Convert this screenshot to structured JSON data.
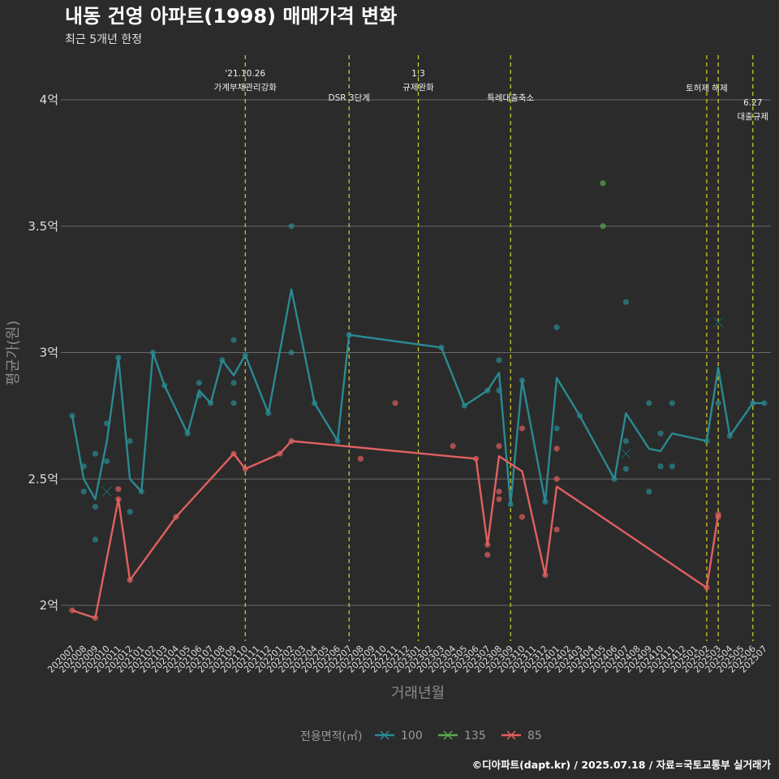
{
  "chart_data": {
    "type": "line",
    "title": "내동 건영 아파트(1998) 매매가격 변화",
    "subtitle": "최근 5개년 한정",
    "xlabel": "거래년월",
    "ylabel": "평균가(원)",
    "caption": "©디아파트(dapt.kr) / 2025.07.18 / 자료=국토교통부 실거래가",
    "ylim": [
      1.85,
      4.2
    ],
    "yticks": [
      {
        "v": 2,
        "label": "2억"
      },
      {
        "v": 2.5,
        "label": "2.5억"
      },
      {
        "v": 3,
        "label": "3억"
      },
      {
        "v": 3.5,
        "label": "3.5억"
      },
      {
        "v": 4,
        "label": "4억"
      }
    ],
    "x_categories": [
      "202007",
      "202008",
      "202009",
      "202010",
      "202011",
      "202012",
      "202101",
      "202102",
      "202103",
      "202104",
      "202105",
      "202106",
      "202107",
      "202108",
      "202109",
      "202110",
      "202111",
      "202112",
      "202201",
      "202202",
      "202203",
      "202204",
      "202205",
      "202206",
      "202207",
      "202208",
      "202209",
      "202210",
      "202211",
      "202212",
      "202301",
      "202302",
      "202303",
      "202304",
      "202305",
      "202306",
      "202307",
      "202308",
      "202309",
      "202310",
      "202311",
      "202312",
      "202401",
      "202402",
      "202403",
      "202404",
      "202405",
      "202406",
      "202407",
      "202408",
      "202409",
      "202410",
      "202411",
      "202412",
      "202501",
      "202502",
      "202503",
      "202504",
      "202505",
      "202506",
      "202507"
    ],
    "grid": true,
    "legend": {
      "title": "전용면적(㎡)",
      "position": "bottom"
    },
    "events": [
      {
        "x": 15,
        "lines": [
          "'21.10.26",
          "가계부채관리강화"
        ],
        "level": 0
      },
      {
        "x": 24,
        "lines": [
          "DSR 3단계"
        ],
        "level": 1
      },
      {
        "x": 30,
        "lines": [
          "1.3",
          "규제완화"
        ],
        "level": 0
      },
      {
        "x": 38,
        "lines": [
          "특례대출축소"
        ],
        "level": 1
      },
      {
        "x": 55,
        "lines": [
          "토허제 해제"
        ],
        "level": 0.6
      },
      {
        "x": 56,
        "lines": [],
        "level": 0
      },
      {
        "x": 59,
        "lines": [
          "6.27",
          "대출규제"
        ],
        "level": 1.2
      }
    ],
    "series": [
      {
        "name": "100",
        "color": "#2a8a92",
        "line": [
          [
            0,
            2.75
          ],
          [
            1,
            2.5
          ],
          [
            2,
            2.42
          ],
          [
            3,
            2.65
          ],
          [
            4,
            2.98
          ],
          [
            5,
            2.5
          ],
          [
            6,
            2.45
          ],
          [
            7,
            3.0
          ],
          [
            8,
            2.87
          ],
          [
            10,
            2.68
          ],
          [
            11,
            2.85
          ],
          [
            12,
            2.8
          ],
          [
            13,
            2.97
          ],
          [
            14,
            2.91
          ],
          [
            15,
            2.99
          ],
          [
            17,
            2.76
          ],
          [
            19,
            3.25
          ],
          [
            21,
            2.8
          ],
          [
            23,
            2.65
          ],
          [
            24,
            3.07
          ],
          [
            32,
            3.02
          ],
          [
            34,
            2.79
          ],
          [
            36,
            2.85
          ],
          [
            37,
            2.92
          ],
          [
            38,
            2.4
          ],
          [
            39,
            2.89
          ],
          [
            41,
            2.41
          ],
          [
            42,
            2.9
          ],
          [
            44,
            2.75
          ],
          [
            47,
            2.5
          ],
          [
            48,
            2.76
          ],
          [
            50,
            2.62
          ],
          [
            51,
            2.61
          ],
          [
            52,
            2.68
          ],
          [
            55,
            2.65
          ],
          [
            56,
            2.94
          ],
          [
            57,
            2.67
          ],
          [
            59,
            2.8
          ],
          [
            60,
            2.8
          ]
        ],
        "points": [
          [
            0,
            2.75
          ],
          [
            1,
            2.55
          ],
          [
            1,
            2.45
          ],
          [
            2,
            2.6
          ],
          [
            2,
            2.39
          ],
          [
            2,
            2.26
          ],
          [
            3,
            2.72
          ],
          [
            3,
            2.57
          ],
          [
            4,
            2.98
          ],
          [
            5,
            2.65
          ],
          [
            5,
            2.37
          ],
          [
            6,
            2.45
          ],
          [
            7,
            3.0
          ],
          [
            8,
            2.87
          ],
          [
            10,
            2.68
          ],
          [
            11,
            2.88
          ],
          [
            11,
            2.83
          ],
          [
            12,
            2.8
          ],
          [
            13,
            2.97
          ],
          [
            14,
            3.05
          ],
          [
            14,
            2.88
          ],
          [
            14,
            2.8
          ],
          [
            15,
            2.99
          ],
          [
            17,
            2.76
          ],
          [
            19,
            3.5
          ],
          [
            19,
            3.0
          ],
          [
            21,
            2.8
          ],
          [
            23,
            2.65
          ],
          [
            24,
            3.07
          ],
          [
            32,
            3.02
          ],
          [
            34,
            2.79
          ],
          [
            36,
            2.85
          ],
          [
            37,
            2.97
          ],
          [
            37,
            2.85
          ],
          [
            38,
            2.4
          ],
          [
            39,
            2.89
          ],
          [
            41,
            2.41
          ],
          [
            42,
            3.1
          ],
          [
            42,
            2.7
          ],
          [
            44,
            2.75
          ],
          [
            47,
            2.5
          ],
          [
            48,
            3.2
          ],
          [
            48,
            2.65
          ],
          [
            48,
            2.54
          ],
          [
            50,
            2.8
          ],
          [
            50,
            2.45
          ],
          [
            51,
            2.68
          ],
          [
            51,
            2.55
          ],
          [
            52,
            2.8
          ],
          [
            52,
            2.55
          ],
          [
            55,
            2.65
          ],
          [
            56,
            2.8
          ],
          [
            57,
            2.67
          ],
          [
            59,
            2.8
          ],
          [
            60,
            2.8
          ]
        ],
        "cancelled": [
          [
            3,
            2.45
          ],
          [
            48,
            2.6
          ],
          [
            56,
            3.12
          ]
        ]
      },
      {
        "name": "135",
        "color": "#5aa84e",
        "line": [],
        "points": [
          [
            46,
            3.67
          ],
          [
            46,
            3.5
          ]
        ],
        "cancelled": []
      },
      {
        "name": "85",
        "color": "#e06060",
        "line": [
          [
            0,
            1.98
          ],
          [
            2,
            1.95
          ],
          [
            4,
            2.42
          ],
          [
            5,
            2.1
          ],
          [
            9,
            2.35
          ],
          [
            14,
            2.6
          ],
          [
            15,
            2.54
          ],
          [
            18,
            2.6
          ],
          [
            19,
            2.65
          ],
          [
            35,
            2.58
          ],
          [
            36,
            2.24
          ],
          [
            37,
            2.59
          ],
          [
            39,
            2.53
          ],
          [
            41,
            2.12
          ],
          [
            42,
            2.47
          ],
          [
            55,
            2.07
          ],
          [
            56,
            2.36
          ]
        ],
        "points": [
          [
            0,
            1.98
          ],
          [
            2,
            1.95
          ],
          [
            4,
            2.46
          ],
          [
            4,
            2.42
          ],
          [
            5,
            2.1
          ],
          [
            9,
            2.35
          ],
          [
            14,
            2.6
          ],
          [
            15,
            2.54
          ],
          [
            18,
            2.6
          ],
          [
            19,
            2.65
          ],
          [
            25,
            2.58
          ],
          [
            28,
            2.8
          ],
          [
            33,
            2.63
          ],
          [
            35,
            2.58
          ],
          [
            36,
            2.24
          ],
          [
            36,
            2.2
          ],
          [
            37,
            2.63
          ],
          [
            37,
            2.45
          ],
          [
            37,
            2.42
          ],
          [
            39,
            2.7
          ],
          [
            39,
            2.35
          ],
          [
            41,
            2.12
          ],
          [
            42,
            2.62
          ],
          [
            42,
            2.5
          ],
          [
            42,
            2.3
          ],
          [
            55,
            2.07
          ],
          [
            56,
            2.36
          ],
          [
            56,
            2.35
          ]
        ],
        "cancelled": []
      }
    ]
  }
}
